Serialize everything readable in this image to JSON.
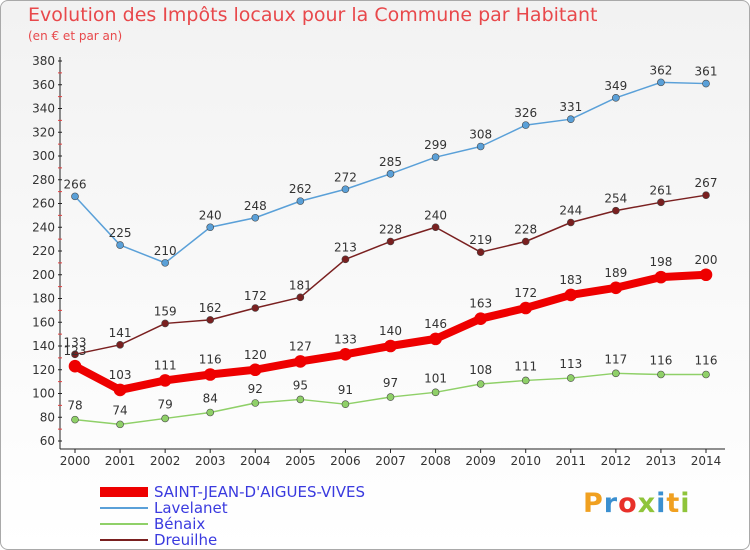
{
  "header": {
    "title": "Evolution des Impôts locaux pour la Commune par Habitant",
    "subtitle": "(en € et par an)"
  },
  "logo": {
    "text": "Proxiti",
    "letter_colors": [
      "#f0a020",
      "#3a8fd0",
      "#e8302a",
      "#8fc43a",
      "#3a8fd0",
      "#f0a020",
      "#8fc43a"
    ]
  },
  "chart_data": {
    "type": "line",
    "title": "Evolution des Impôts locaux pour la Commune par Habitant",
    "subtitle": "(en € et par an)",
    "xlabel": "",
    "ylabel": "",
    "x": [
      "2000",
      "2001",
      "2002",
      "2003",
      "2004",
      "2005",
      "2006",
      "2007",
      "2008",
      "2009",
      "2010",
      "2011",
      "2012",
      "2013",
      "2014"
    ],
    "ylim": [
      60,
      380
    ],
    "yticks": [
      60,
      80,
      100,
      120,
      140,
      160,
      180,
      200,
      220,
      240,
      260,
      280,
      300,
      320,
      340,
      360,
      380
    ],
    "grid": false,
    "legend_position": "bottom-left",
    "series": [
      {
        "name": "SAINT-JEAN-D'AIGUES-VIVES",
        "color": "#ee0000",
        "emphasis": true,
        "values": [
          123,
          103,
          111,
          116,
          120,
          127,
          133,
          140,
          146,
          163,
          172,
          183,
          189,
          198,
          200
        ]
      },
      {
        "name": "Lavelanet",
        "color": "#5aa0d8",
        "emphasis": false,
        "values": [
          266,
          225,
          210,
          240,
          248,
          262,
          272,
          285,
          299,
          308,
          326,
          331,
          349,
          362,
          361
        ]
      },
      {
        "name": "Bénaix",
        "color": "#8fd068",
        "emphasis": false,
        "values": [
          78,
          74,
          79,
          84,
          92,
          95,
          91,
          97,
          101,
          108,
          111,
          113,
          117,
          116,
          116
        ]
      },
      {
        "name": "Dreuilhe",
        "color": "#7a2020",
        "emphasis": false,
        "values": [
          133,
          141,
          159,
          162,
          172,
          181,
          213,
          228,
          240,
          219,
          228,
          244,
          254,
          261,
          267
        ]
      }
    ]
  }
}
